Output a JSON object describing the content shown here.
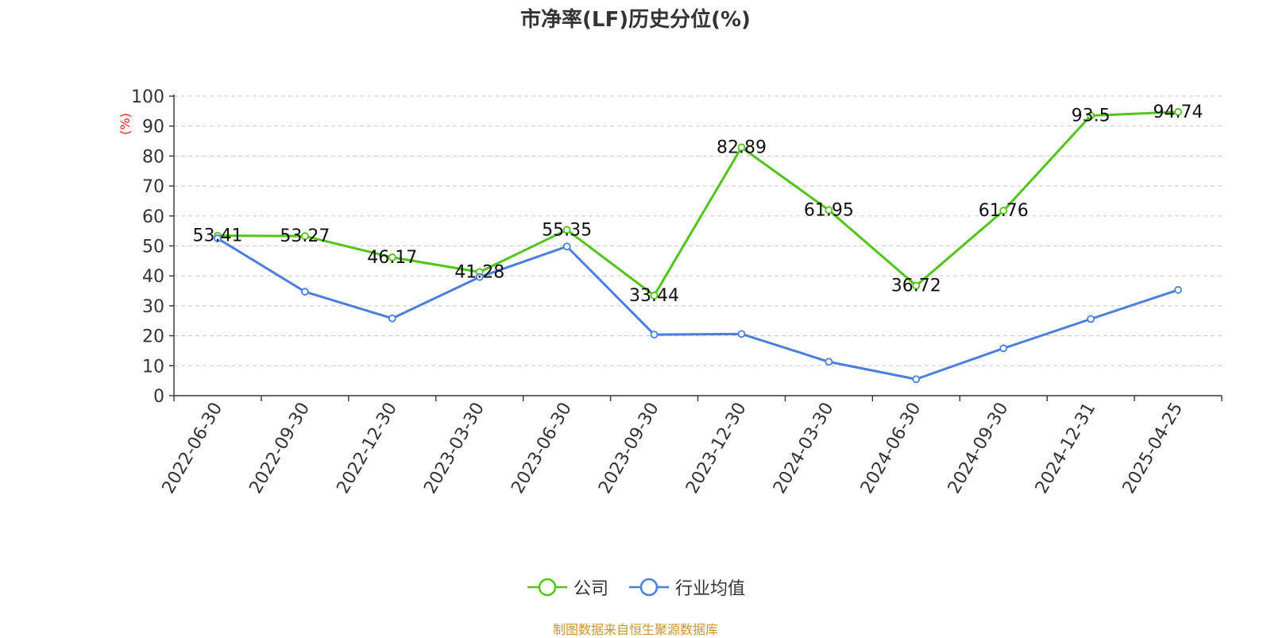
{
  "title": "市净率(LF)历史分位(%)",
  "source_note": "制图数据来自恒生聚源数据库",
  "chart_data": {
    "type": "line",
    "title": "市净率(LF)历史分位(%)",
    "ylabel": "(%)",
    "ylim": [
      0,
      100
    ],
    "y_ticks": [
      0,
      10,
      20,
      30,
      40,
      50,
      60,
      70,
      80,
      90,
      100
    ],
    "grid": true,
    "legend_position": "bottom-center",
    "categories": [
      "2022-06-30",
      "2022-09-30",
      "2022-12-30",
      "2023-03-30",
      "2023-06-30",
      "2023-09-30",
      "2023-12-30",
      "2024-03-30",
      "2024-06-30",
      "2024-09-30",
      "2024-12-31",
      "2025-04-25"
    ],
    "series": [
      {
        "name": "公司",
        "color": "#52c41a",
        "show_labels": true,
        "values": [
          53.41,
          53.27,
          46.17,
          41.28,
          55.35,
          33.44,
          82.89,
          61.95,
          36.72,
          61.76,
          93.5,
          94.74
        ]
      },
      {
        "name": "行业均值",
        "color": "#4a7fe0",
        "show_labels": false,
        "values": [
          52.5,
          34.7,
          25.8,
          39.6,
          49.8,
          20.4,
          20.6,
          11.3,
          5.5,
          15.8,
          25.6,
          35.3
        ]
      }
    ]
  }
}
